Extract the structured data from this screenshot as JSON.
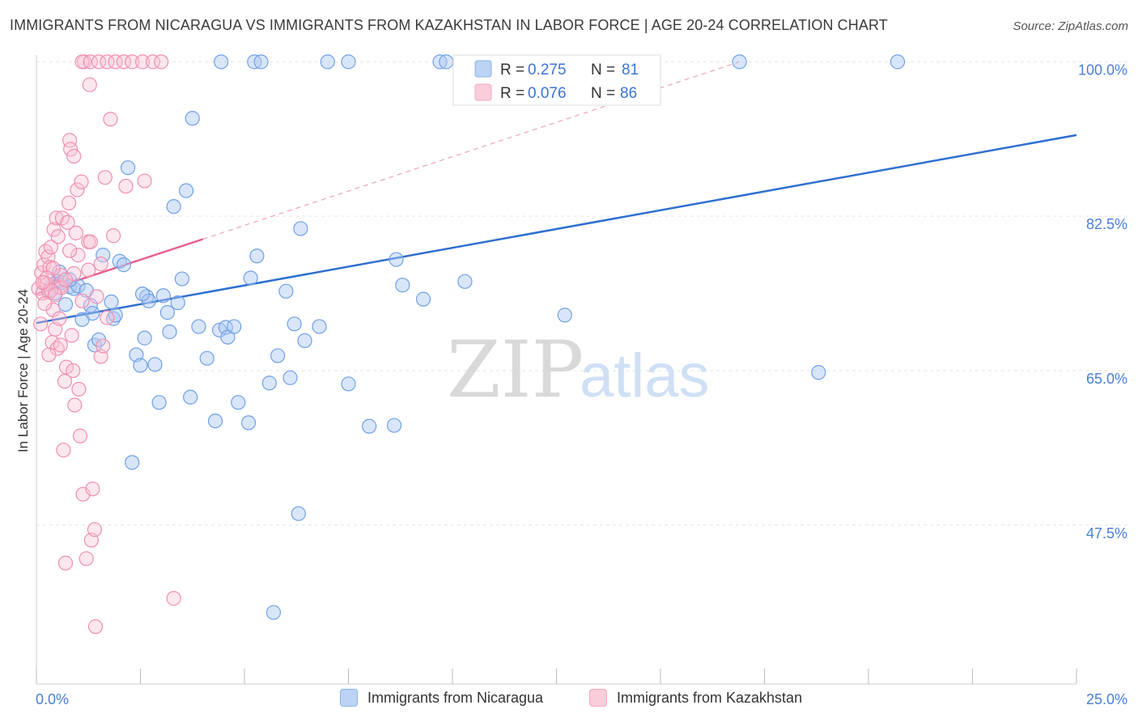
{
  "title": "IMMIGRANTS FROM NICARAGUA VS IMMIGRANTS FROM KAZAKHSTAN IN LABOR FORCE | AGE 20-24 CORRELATION CHART",
  "source": "Source: ZipAtlas.com",
  "watermark": {
    "zip": "ZIP",
    "atlas": "atlas"
  },
  "legend_stats": [
    {
      "name": "Immigrants from Nicaragua",
      "r_label": "R = ",
      "r_value": "0.275",
      "n_label": "N = ",
      "n_value": "81",
      "color": "#8ab4ea"
    },
    {
      "name": "Immigrants from Kazakhstan",
      "r_label": "R = ",
      "r_value": "0.076",
      "n_label": "N = ",
      "n_value": "86",
      "color": "#f4a8bf"
    }
  ],
  "chart_data": {
    "type": "scatter",
    "title": "IMMIGRANTS FROM NICARAGUA VS IMMIGRANTS FROM KAZAKHSTAN IN LABOR FORCE | AGE 20-24 CORRELATION CHART",
    "xlabel": "",
    "ylabel": "In Labor Force | Age 20-24",
    "xlim": [
      0,
      25
    ],
    "ylim": [
      29.5,
      101.5
    ],
    "x_tick_labels": [
      "0.0%",
      "25.0%"
    ],
    "y_ticks": [
      47.5,
      65.0,
      82.5,
      100.0
    ],
    "y_tick_labels": [
      "47.5%",
      "65.0%",
      "82.5%",
      "100.0%"
    ],
    "grid": true,
    "legend_position": "bottom",
    "series": [
      {
        "name": "Immigrants from Nicaragua",
        "color": "#6fa0e8",
        "trend": {
          "x": [
            0.0,
            25.0
          ],
          "y": [
            70.4,
            91.7
          ],
          "style": "solid"
        },
        "points": [
          [
            0.3,
            74.2
          ],
          [
            0.4,
            74.8
          ],
          [
            0.5,
            75.1
          ],
          [
            0.55,
            76.2
          ],
          [
            0.6,
            75.0
          ],
          [
            0.7,
            72.5
          ],
          [
            0.8,
            74.5
          ],
          [
            0.9,
            74.3
          ],
          [
            1.0,
            74.6
          ],
          [
            1.1,
            70.8
          ],
          [
            1.3,
            72.4
          ],
          [
            1.4,
            67.9
          ],
          [
            1.5,
            68.5
          ],
          [
            1.6,
            78.1
          ],
          [
            1.8,
            72.8
          ],
          [
            1.85,
            70.9
          ],
          [
            1.9,
            71.3
          ],
          [
            2.0,
            77.4
          ],
          [
            2.1,
            77.0
          ],
          [
            2.2,
            88.0
          ],
          [
            2.3,
            54.6
          ],
          [
            2.4,
            66.8
          ],
          [
            2.5,
            65.6
          ],
          [
            2.6,
            68.7
          ],
          [
            2.65,
            73.4
          ],
          [
            2.7,
            72.9
          ],
          [
            2.85,
            65.7
          ],
          [
            2.95,
            61.4
          ],
          [
            3.05,
            73.5
          ],
          [
            3.15,
            71.6
          ],
          [
            3.2,
            69.4
          ],
          [
            3.3,
            83.6
          ],
          [
            3.4,
            72.7
          ],
          [
            3.5,
            75.4
          ],
          [
            3.6,
            85.4
          ],
          [
            3.7,
            62.0
          ],
          [
            3.75,
            93.6
          ],
          [
            3.9,
            70.0
          ],
          [
            4.1,
            66.4
          ],
          [
            4.3,
            59.3
          ],
          [
            4.4,
            69.6
          ],
          [
            4.55,
            69.9
          ],
          [
            4.6,
            68.8
          ],
          [
            4.75,
            70.0
          ],
          [
            4.85,
            61.4
          ],
          [
            5.1,
            59.1
          ],
          [
            5.15,
            75.5
          ],
          [
            5.3,
            78.0
          ],
          [
            5.6,
            63.6
          ],
          [
            5.7,
            37.6
          ],
          [
            5.8,
            66.7
          ],
          [
            6.0,
            74.0
          ],
          [
            6.1,
            64.2
          ],
          [
            6.2,
            70.3
          ],
          [
            6.35,
            81.1
          ],
          [
            6.45,
            68.4
          ],
          [
            6.8,
            70.0
          ],
          [
            7.5,
            63.5
          ],
          [
            8.0,
            58.7
          ],
          [
            8.6,
            58.8
          ],
          [
            8.65,
            77.6
          ],
          [
            8.8,
            74.7
          ],
          [
            9.3,
            73.1
          ],
          [
            10.3,
            75.1
          ],
          [
            12.7,
            71.3
          ],
          [
            18.8,
            64.8
          ],
          [
            6.3,
            48.8
          ],
          [
            4.44,
            100.0
          ],
          [
            5.24,
            100.0
          ],
          [
            5.4,
            100.0
          ],
          [
            7.0,
            100.0
          ],
          [
            7.5,
            100.0
          ],
          [
            9.7,
            100.0
          ],
          [
            9.85,
            100.0
          ],
          [
            16.9,
            100.0
          ],
          [
            20.7,
            100.0
          ],
          [
            1.35,
            71.5
          ],
          [
            2.55,
            73.7
          ],
          [
            0.45,
            73.8
          ],
          [
            1.2,
            74.1
          ],
          [
            0.8,
            75.3
          ]
        ]
      },
      {
        "name": "Immigrants from Kazakhstan",
        "color": "#f08fae",
        "trend": {
          "x": [
            0.0,
            4.0
          ],
          "y": [
            73.7,
            79.9
          ],
          "style": "solid",
          "extended": {
            "x": [
              4.0,
              16.9
            ],
            "y": [
              79.9,
              100.0
            ],
            "style": "dashed"
          }
        },
        "points": [
          [
            0.05,
            74.3
          ],
          [
            0.1,
            70.3
          ],
          [
            0.12,
            76.1
          ],
          [
            0.15,
            73.8
          ],
          [
            0.18,
            77.0
          ],
          [
            0.2,
            75.0
          ],
          [
            0.22,
            78.5
          ],
          [
            0.25,
            74.8
          ],
          [
            0.28,
            77.9
          ],
          [
            0.3,
            73.9
          ],
          [
            0.32,
            76.7
          ],
          [
            0.35,
            79.0
          ],
          [
            0.38,
            68.2
          ],
          [
            0.4,
            71.9
          ],
          [
            0.42,
            81.0
          ],
          [
            0.45,
            69.7
          ],
          [
            0.48,
            82.3
          ],
          [
            0.5,
            67.5
          ],
          [
            0.52,
            80.2
          ],
          [
            0.55,
            74.5
          ],
          [
            0.58,
            67.9
          ],
          [
            0.6,
            75.8
          ],
          [
            0.62,
            82.3
          ],
          [
            0.65,
            56.0
          ],
          [
            0.68,
            63.8
          ],
          [
            0.7,
            43.2
          ],
          [
            0.72,
            65.4
          ],
          [
            0.75,
            81.8
          ],
          [
            0.78,
            84.0
          ],
          [
            0.8,
            91.1
          ],
          [
            0.82,
            90.1
          ],
          [
            0.85,
            69.0
          ],
          [
            0.88,
            65.0
          ],
          [
            0.9,
            89.3
          ],
          [
            0.92,
            61.1
          ],
          [
            0.95,
            80.6
          ],
          [
            0.98,
            85.5
          ],
          [
            1.0,
            78.1
          ],
          [
            1.02,
            62.9
          ],
          [
            1.05,
            57.6
          ],
          [
            1.08,
            86.4
          ],
          [
            1.1,
            72.9
          ],
          [
            1.12,
            51.0
          ],
          [
            1.15,
            100.0
          ],
          [
            1.2,
            43.7
          ],
          [
            1.25,
            79.6
          ],
          [
            1.28,
            97.4
          ],
          [
            1.3,
            79.6
          ],
          [
            1.32,
            45.8
          ],
          [
            1.35,
            51.6
          ],
          [
            1.4,
            47.0
          ],
          [
            1.42,
            36.0
          ],
          [
            1.45,
            73.4
          ],
          [
            1.55,
            66.6
          ],
          [
            1.6,
            67.8
          ],
          [
            1.65,
            86.9
          ],
          [
            1.7,
            71.0
          ],
          [
            1.78,
            93.5
          ],
          [
            1.85,
            80.3
          ],
          [
            2.15,
            85.9
          ],
          [
            2.6,
            86.5
          ],
          [
            3.3,
            39.2
          ],
          [
            0.3,
            66.8
          ],
          [
            0.55,
            70.9
          ],
          [
            0.9,
            76.0
          ],
          [
            0.2,
            72.6
          ],
          [
            1.1,
            100.0
          ],
          [
            1.3,
            100.0
          ],
          [
            1.5,
            100.0
          ],
          [
            1.7,
            100.0
          ],
          [
            1.9,
            100.0
          ],
          [
            2.1,
            100.0
          ],
          [
            2.3,
            100.0
          ],
          [
            2.55,
            100.0
          ],
          [
            2.8,
            100.0
          ],
          [
            3.0,
            100.0
          ],
          [
            0.4,
            76.6
          ],
          [
            0.6,
            74.4
          ],
          [
            0.7,
            75.3
          ],
          [
            0.25,
            75.5
          ],
          [
            0.35,
            74.1
          ],
          [
            1.55,
            77.1
          ],
          [
            0.15,
            75.0
          ],
          [
            0.45,
            73.6
          ],
          [
            1.25,
            76.4
          ],
          [
            0.8,
            78.6
          ]
        ]
      }
    ]
  }
}
